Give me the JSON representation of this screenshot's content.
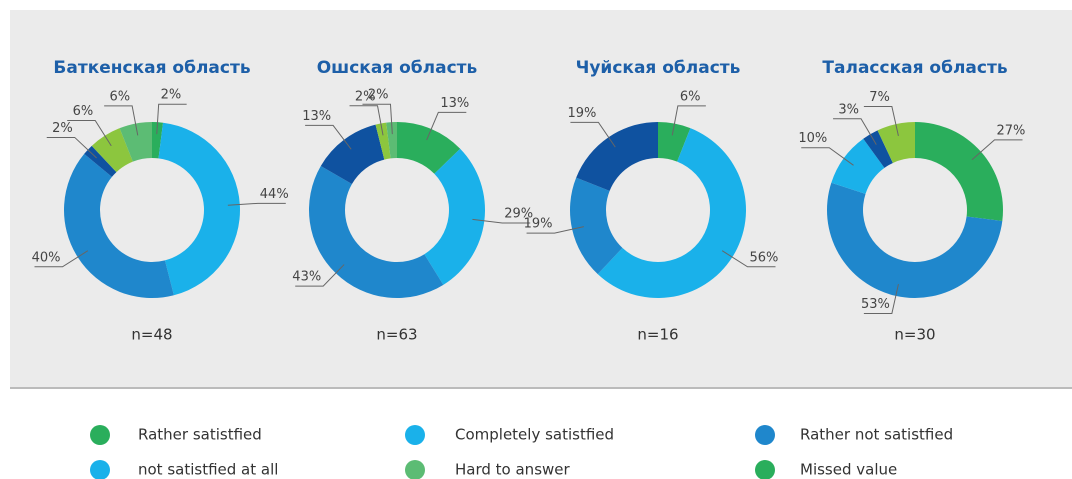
{
  "chart_data": [
    {
      "type": "pie",
      "title": "Баткенская область",
      "n_label": "n=48",
      "values": [
        2,
        44,
        40,
        2,
        6,
        6
      ],
      "value_labels": [
        "2%",
        "44%",
        "40%",
        "2%",
        "6%",
        "6%"
      ],
      "colors": [
        "#2aae5c",
        "#1ab1ea",
        "#1f87cc",
        "#0f52a0",
        "#8cc63e",
        "#5cbc74"
      ]
    },
    {
      "type": "pie",
      "title": "Ошская область",
      "n_label": "n=63",
      "values": [
        13,
        29,
        43,
        13,
        2,
        2
      ],
      "value_labels": [
        "13%",
        "29%",
        "43%",
        "13%",
        "2%",
        "2%"
      ],
      "colors": [
        "#2aae5c",
        "#1ab1ea",
        "#1f87cc",
        "#0f52a0",
        "#8cc63e",
        "#5cbc74"
      ]
    },
    {
      "type": "pie",
      "title": "Чуйская область",
      "n_label": "n=16",
      "values": [
        6,
        56,
        19,
        19
      ],
      "value_labels": [
        "6%",
        "56%",
        "19%",
        "19%"
      ],
      "colors": [
        "#2aae5c",
        "#1ab1ea",
        "#1f87cc",
        "#0f52a0"
      ]
    },
    {
      "type": "pie",
      "title": "Таласская область",
      "n_label": "n=30",
      "values": [
        27,
        53,
        10,
        3,
        7
      ],
      "value_labels": [
        "27%",
        "53%",
        "10%",
        "3%",
        "7%"
      ],
      "colors": [
        "#2aae5c",
        "#1f87cc",
        "#1ab1ea",
        "#0f52a0",
        "#8cc63e"
      ]
    }
  ],
  "legend": [
    {
      "name": "Rather satistfied",
      "color": "#2aae5c"
    },
    {
      "name": "Completely satistfied",
      "color": "#1ab1ea"
    },
    {
      "name": "Rather not satistfied",
      "color": "#1f87cc"
    },
    {
      "name": "not satistfied at all",
      "color": "#1ab1ea"
    },
    {
      "name": "Hard to answer",
      "color": "#5cbc74"
    },
    {
      "name": "Missed value",
      "color": "#2aae5c"
    }
  ]
}
